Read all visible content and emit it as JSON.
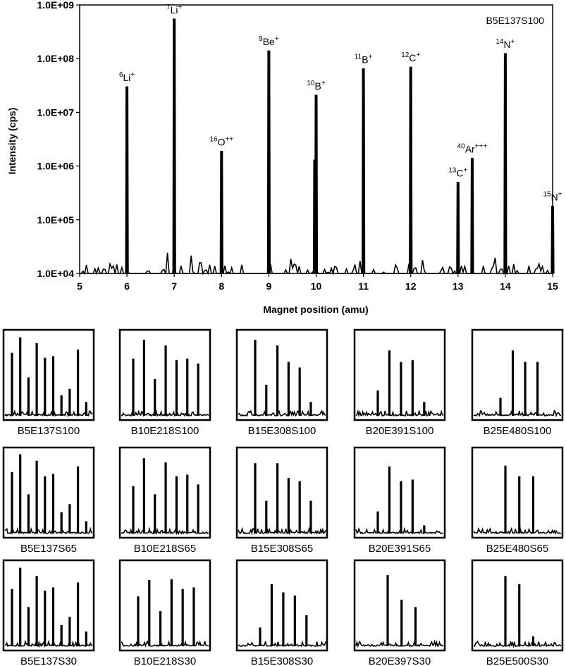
{
  "chart_data": [
    {
      "type": "line",
      "title": "B5E137S100",
      "xlabel": "Magnet position (amu)",
      "ylabel": "Intensity (cps)",
      "xlim": [
        5,
        15
      ],
      "ylim": [
        10000,
        1000000000
      ],
      "yscale": "log",
      "x_ticks": [
        "5",
        "6",
        "7",
        "8",
        "9",
        "10",
        "11",
        "12",
        "13",
        "14",
        "15"
      ],
      "y_ticks": [
        "1.0E+04",
        "1.0E+05",
        "1.0E+06",
        "1.0E+07",
        "1.0E+08",
        "1.0E+09"
      ],
      "peaks": [
        {
          "x": 6.0,
          "y": 30000000,
          "iso": "6",
          "el": "Li",
          "charge": "+"
        },
        {
          "x": 7.0,
          "y": 550000000,
          "iso": "7",
          "el": "Li",
          "charge": "+"
        },
        {
          "x": 8.0,
          "y": 1900000,
          "iso": "16",
          "el": "O",
          "charge": "++"
        },
        {
          "x": 9.0,
          "y": 140000000,
          "iso": "9",
          "el": "Be",
          "charge": "+"
        },
        {
          "x": 10.0,
          "y": 21000000,
          "iso": "10",
          "el": "B",
          "charge": "+"
        },
        {
          "x": 11.0,
          "y": 65000000,
          "iso": "11",
          "el": "B",
          "charge": "+"
        },
        {
          "x": 12.0,
          "y": 70000000,
          "iso": "12",
          "el": "C",
          "charge": "+"
        },
        {
          "x": 13.0,
          "y": 500000,
          "iso": "13",
          "el": "C",
          "charge": "+"
        },
        {
          "x": 13.3,
          "y": 1400000,
          "iso": "40",
          "el": "Ar",
          "charge": "+++"
        },
        {
          "x": 14.0,
          "y": 125000000,
          "iso": "14",
          "el": "N",
          "charge": "+"
        },
        {
          "x": 15.0,
          "y": 180000,
          "iso": "15",
          "el": "N",
          "charge": "+"
        }
      ],
      "minor_peaks": [
        {
          "x": 9.97,
          "y": 1300000
        }
      ]
    },
    {
      "type": "grid_of_thumbnails",
      "note": "Relative peak heights (0-1) of main peaks in each small panel",
      "panels": [
        {
          "name": "B5E137S100",
          "peaks": [
            0.77,
            0.96,
            0.47,
            0.89,
            0.71,
            0.73,
            0.25,
            0.33,
            0.81,
            0.17
          ]
        },
        {
          "name": "B10E218S100",
          "peaks": [
            0.7,
            0.93,
            0.45,
            0.86,
            0.68,
            0.7,
            0.64
          ]
        },
        {
          "name": "B15E308S100",
          "peaks": [
            0.93,
            0.38,
            0.86,
            0.66,
            0.59,
            0.17
          ]
        },
        {
          "name": "B20E391S100",
          "peaks": [
            0.31,
            0.8,
            0.66,
            0.68,
            0.17
          ]
        },
        {
          "name": "B25E480S100",
          "peaks": [
            0.22,
            0.8,
            0.66,
            0.66
          ]
        },
        {
          "name": "B5E137S65",
          "peaks": [
            0.75,
            0.97,
            0.48,
            0.89,
            0.7,
            0.73,
            0.26,
            0.36,
            0.82,
            0.15
          ]
        },
        {
          "name": "B10E218S65",
          "peaks": [
            0.58,
            0.92,
            0.48,
            0.87,
            0.7,
            0.72,
            0.6
          ]
        },
        {
          "name": "B15E308S65",
          "peaks": [
            0.86,
            0.4,
            0.86,
            0.68,
            0.64,
            0.4
          ]
        },
        {
          "name": "B20E391S65",
          "peaks": [
            0.27,
            0.82,
            0.64,
            0.66,
            0.1
          ]
        },
        {
          "name": "B25E480S65",
          "peaks": [
            0.83,
            0.7,
            0.7
          ]
        },
        {
          "name": "B5E137S30",
          "peaks": [
            0.7,
            0.96,
            0.48,
            0.86,
            0.68,
            0.72,
            0.26,
            0.36,
            0.78,
            0.18
          ]
        },
        {
          "name": "B10E218S30",
          "peaks": [
            0.61,
            0.81,
            0.43,
            0.82,
            0.7,
            0.72
          ]
        },
        {
          "name": "B15E308S30",
          "peaks": [
            0.23,
            0.76,
            0.66,
            0.62,
            0.38
          ]
        },
        {
          "name": "B20E397S30",
          "peaks": [
            0.87,
            0.57,
            0.48
          ]
        },
        {
          "name": "B25E500S30",
          "peaks": [
            0.86,
            0.76,
            0.12
          ]
        }
      ]
    }
  ]
}
